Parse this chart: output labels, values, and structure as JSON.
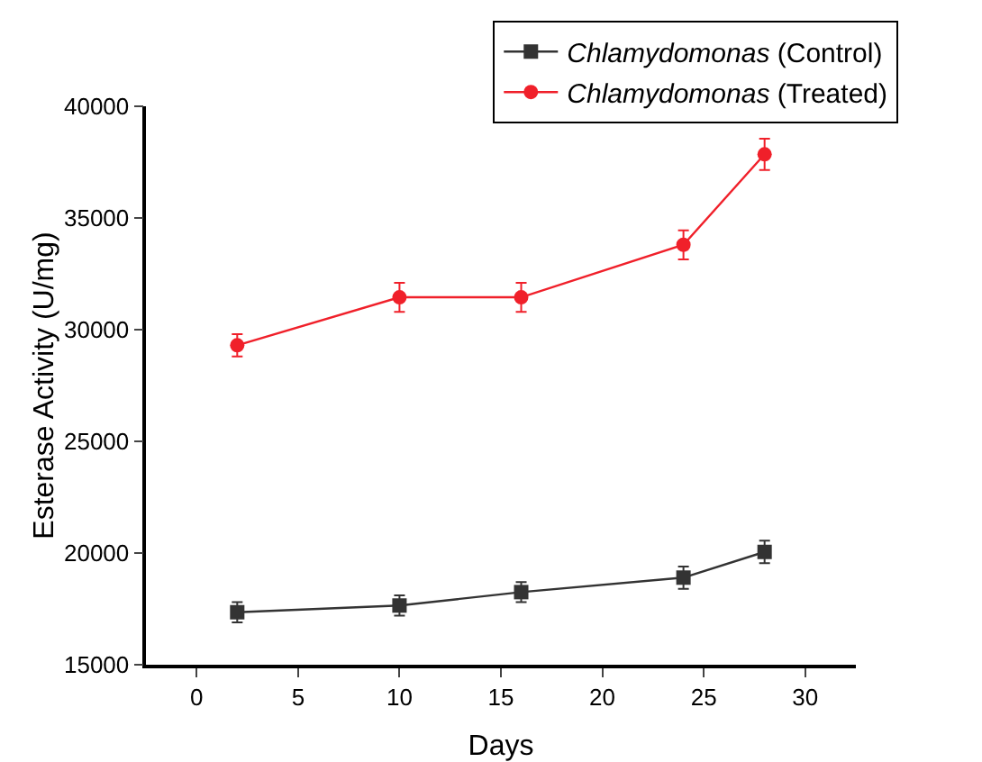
{
  "chart_data": {
    "type": "line",
    "xlabel": "Days",
    "ylabel": "Esterase Activity (U/mg)",
    "x": [
      2,
      10,
      16,
      24,
      28
    ],
    "series": [
      {
        "name": "Chlamydomonas (Control)",
        "color": "#333333",
        "marker": "square",
        "values": [
          17350,
          17650,
          18250,
          18900,
          20050
        ],
        "errors": [
          450,
          450,
          450,
          500,
          500
        ]
      },
      {
        "name": "Chlamydomonas (Treated)",
        "color": "#f0202a",
        "marker": "circle",
        "values": [
          29300,
          31450,
          31450,
          33800,
          37850
        ],
        "errors": [
          500,
          650,
          650,
          650,
          700
        ]
      }
    ],
    "xlim": [
      -2.5,
      32.5
    ],
    "xticks": [
      0,
      5,
      10,
      15,
      20,
      25,
      30
    ],
    "ylim": [
      15000,
      40000
    ],
    "yticks": [
      15000,
      20000,
      25000,
      30000,
      35000,
      40000
    ],
    "grid": false,
    "legend": "top right",
    "line_style": "solid"
  }
}
